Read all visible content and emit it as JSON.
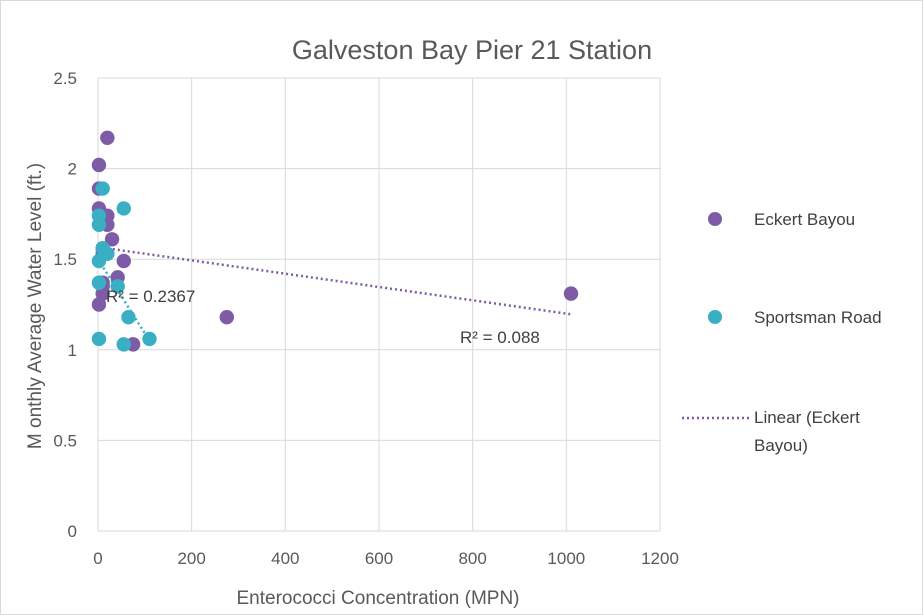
{
  "chart_data": {
    "type": "scatter",
    "title": "Galveston Bay Pier 21 Station",
    "xlabel": "Enterococci Concentration (MPN)",
    "ylabel": "M onthly Average Water Level (ft.)",
    "xlim": [
      0,
      1200
    ],
    "ylim": [
      0,
      2.5
    ],
    "x_ticks": [
      "0",
      "200",
      "400",
      "600",
      "800",
      "1000",
      "1200"
    ],
    "y_ticks": [
      "0",
      "0.5",
      "1",
      "1.5",
      "2",
      "2.5"
    ],
    "grid": true,
    "legend_position": "right",
    "series": [
      {
        "name": "Eckert Bayou",
        "color": "#7e5ba6",
        "points": [
          [
            20,
            2.17
          ],
          [
            2,
            2.02
          ],
          [
            2,
            1.89
          ],
          [
            2,
            1.78
          ],
          [
            20,
            1.74
          ],
          [
            20,
            1.69
          ],
          [
            30,
            1.61
          ],
          [
            10,
            1.56
          ],
          [
            10,
            1.53
          ],
          [
            55,
            1.49
          ],
          [
            42,
            1.4
          ],
          [
            10,
            1.37
          ],
          [
            10,
            1.35
          ],
          [
            10,
            1.31
          ],
          [
            2,
            1.25
          ],
          [
            275,
            1.18
          ],
          [
            75,
            1.03
          ],
          [
            1010,
            1.31
          ]
        ]
      },
      {
        "name": "Sportsman Road",
        "color": "#3aafc4",
        "points": [
          [
            10,
            1.89
          ],
          [
            55,
            1.78
          ],
          [
            2,
            1.74
          ],
          [
            2,
            1.69
          ],
          [
            10,
            1.56
          ],
          [
            20,
            1.53
          ],
          [
            2,
            1.49
          ],
          [
            2,
            1.37
          ],
          [
            42,
            1.35
          ],
          [
            65,
            1.18
          ],
          [
            2,
            1.06
          ],
          [
            110,
            1.06
          ],
          [
            55,
            1.03
          ]
        ]
      }
    ],
    "trendlines": [
      {
        "name": "Linear (Eckert Bayou)",
        "color": "#7e5ba6",
        "x": [
          0,
          1010
        ],
        "y": [
          1.567,
          1.196
        ],
        "r2_label": "R² = 0.088",
        "show_in_legend": true
      },
      {
        "color": "#3aafc4",
        "x": [
          0,
          110
        ],
        "y": [
          1.5,
          1.05
        ],
        "r2_label": "R² = 0.2367",
        "show_in_legend": false
      }
    ],
    "legend": {
      "eckert_label": "Eckert Bayou",
      "sportsman_label": "Sportsman Road",
      "trend_label_line1": "Linear (Eckert",
      "trend_label_line2": "Bayou)"
    }
  }
}
